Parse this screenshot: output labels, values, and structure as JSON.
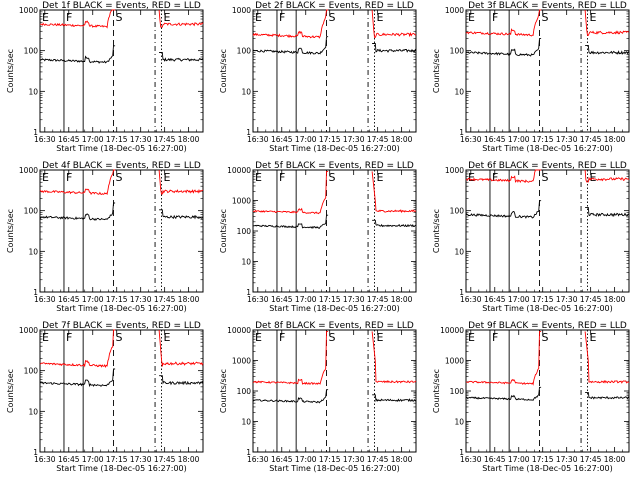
{
  "chart_data": {
    "type": "line",
    "layout": "3x3 grid of panels",
    "y_scale": "log",
    "ylim": [
      1,
      1000
    ],
    "ylim_big": [
      1,
      10000
    ],
    "x_ticks": [
      "16:30",
      "16:45",
      "17:00",
      "17:15",
      "17:30",
      "17:45",
      "18:00"
    ],
    "x_ticks_wide": [
      "16:30",
      "16:45",
      "17:00",
      "17:15",
      "17:30",
      "17:45",
      "18:00"
    ],
    "x_range_minutes": [
      0,
      102
    ],
    "ylabel": "Counts/sec",
    "xlabel": "Start Time (18-Dec-05 16:27:00)",
    "series_colors": {
      "events": "#000000",
      "lld": "#ff0000"
    },
    "panels": [
      {
        "title": "Det 1f BLACK = Events, RED = LLD",
        "ymax": 1000,
        "events_level": 60,
        "lld_level": 450,
        "flare_peak": 1000,
        "lines": [
          {
            "label": "E",
            "x": 0,
            "style": "solid"
          },
          {
            "label": "F",
            "x": 15,
            "style": "solid"
          },
          {
            "label": "",
            "x": 27,
            "style": "solid"
          },
          {
            "label": "S",
            "x": 46,
            "style": "dashed"
          },
          {
            "label": "",
            "x": 72,
            "style": "dashdot"
          },
          {
            "label": "E",
            "x": 76,
            "style": "dotted"
          }
        ]
      },
      {
        "title": "Det 2f BLACK = Events, RED = LLD",
        "ymax": 1000,
        "events_level": 100,
        "lld_level": 250,
        "flare_peak": 1000,
        "lines": [
          {
            "label": "E",
            "x": 0,
            "style": "solid"
          },
          {
            "label": "F",
            "x": 15,
            "style": "solid"
          },
          {
            "label": "",
            "x": 27,
            "style": "solid"
          },
          {
            "label": "S",
            "x": 46,
            "style": "dashed"
          },
          {
            "label": "",
            "x": 72,
            "style": "dashdot"
          },
          {
            "label": "E",
            "x": 76,
            "style": "dotted"
          }
        ]
      },
      {
        "title": "Det 3f BLACK = Events, RED = LLD",
        "ymax": 1000,
        "events_level": 90,
        "lld_level": 280,
        "flare_peak": 1000,
        "lines": [
          {
            "label": "E",
            "x": 0,
            "style": "solid"
          },
          {
            "label": "F",
            "x": 15,
            "style": "solid"
          },
          {
            "label": "",
            "x": 27,
            "style": "solid"
          },
          {
            "label": "S",
            "x": 46,
            "style": "dashed"
          },
          {
            "label": "",
            "x": 72,
            "style": "dashdot"
          },
          {
            "label": "E",
            "x": 76,
            "style": "dotted"
          }
        ]
      },
      {
        "title": "Det 4f BLACK = Events, RED = LLD",
        "ymax": 1000,
        "events_level": 70,
        "lld_level": 300,
        "flare_peak": 1000,
        "lines": [
          {
            "label": "E",
            "x": 0,
            "style": "solid"
          },
          {
            "label": "F",
            "x": 15,
            "style": "solid"
          },
          {
            "label": "",
            "x": 27,
            "style": "solid"
          },
          {
            "label": "S",
            "x": 46,
            "style": "dashed"
          },
          {
            "label": "",
            "x": 72,
            "style": "dashdot"
          },
          {
            "label": "E",
            "x": 76,
            "style": "dotted"
          }
        ]
      },
      {
        "title": "Det 5f BLACK = Events, RED = LLD",
        "ymax": 10000,
        "events_level": 150,
        "lld_level": 450,
        "flare_peak": 9000,
        "lines": [
          {
            "label": "E",
            "x": 0,
            "style": "solid"
          },
          {
            "label": "F",
            "x": 15,
            "style": "solid"
          },
          {
            "label": "",
            "x": 27,
            "style": "solid"
          },
          {
            "label": "S",
            "x": 46,
            "style": "dashed"
          },
          {
            "label": "",
            "x": 72,
            "style": "dashdot"
          },
          {
            "label": "E",
            "x": 76,
            "style": "dotted"
          }
        ]
      },
      {
        "title": "Det 6f BLACK = Events, RED = LLD",
        "ymax": 1000,
        "events_level": 80,
        "lld_level": 600,
        "flare_peak": 1000,
        "lines": [
          {
            "label": "E",
            "x": 0,
            "style": "solid"
          },
          {
            "label": "F",
            "x": 15,
            "style": "solid"
          },
          {
            "label": "",
            "x": 27,
            "style": "solid"
          },
          {
            "label": "S",
            "x": 46,
            "style": "dashed"
          },
          {
            "label": "",
            "x": 72,
            "style": "dashdot"
          },
          {
            "label": "E",
            "x": 76,
            "style": "dotted"
          }
        ]
      },
      {
        "title": "Det 7f BLACK = Events, RED = LLD",
        "ymax": 1000,
        "events_level": 50,
        "lld_level": 150,
        "flare_peak": 1000,
        "lines": [
          {
            "label": "E",
            "x": 0,
            "style": "solid"
          },
          {
            "label": "F",
            "x": 15,
            "style": "solid"
          },
          {
            "label": "",
            "x": 27,
            "style": "solid"
          },
          {
            "label": "S",
            "x": 46,
            "style": "dashed"
          },
          {
            "label": "",
            "x": 72,
            "style": "dashdot"
          },
          {
            "label": "E",
            "x": 76,
            "style": "dotted"
          }
        ]
      },
      {
        "title": "Det 8f BLACK = Events, RED = LLD",
        "ymax": 10000,
        "events_level": 50,
        "lld_level": 200,
        "flare_peak": 9000,
        "lines": [
          {
            "label": "E",
            "x": 0,
            "style": "solid"
          },
          {
            "label": "F",
            "x": 15,
            "style": "solid"
          },
          {
            "label": "",
            "x": 27,
            "style": "solid"
          },
          {
            "label": "S",
            "x": 46,
            "style": "dashed"
          },
          {
            "label": "",
            "x": 72,
            "style": "dashdot"
          },
          {
            "label": "E",
            "x": 76,
            "style": "dotted"
          }
        ]
      },
      {
        "title": "Det 9f BLACK = Events, RED = LLD",
        "ymax": 10000,
        "events_level": 60,
        "lld_level": 200,
        "flare_peak": 9000,
        "lines": [
          {
            "label": "E",
            "x": 0,
            "style": "solid"
          },
          {
            "label": "F",
            "x": 15,
            "style": "solid"
          },
          {
            "label": "",
            "x": 27,
            "style": "solid"
          },
          {
            "label": "S",
            "x": 46,
            "style": "dashed"
          },
          {
            "label": "",
            "x": 72,
            "style": "dashdot"
          },
          {
            "label": "E",
            "x": 76,
            "style": "dotted"
          }
        ]
      }
    ]
  }
}
